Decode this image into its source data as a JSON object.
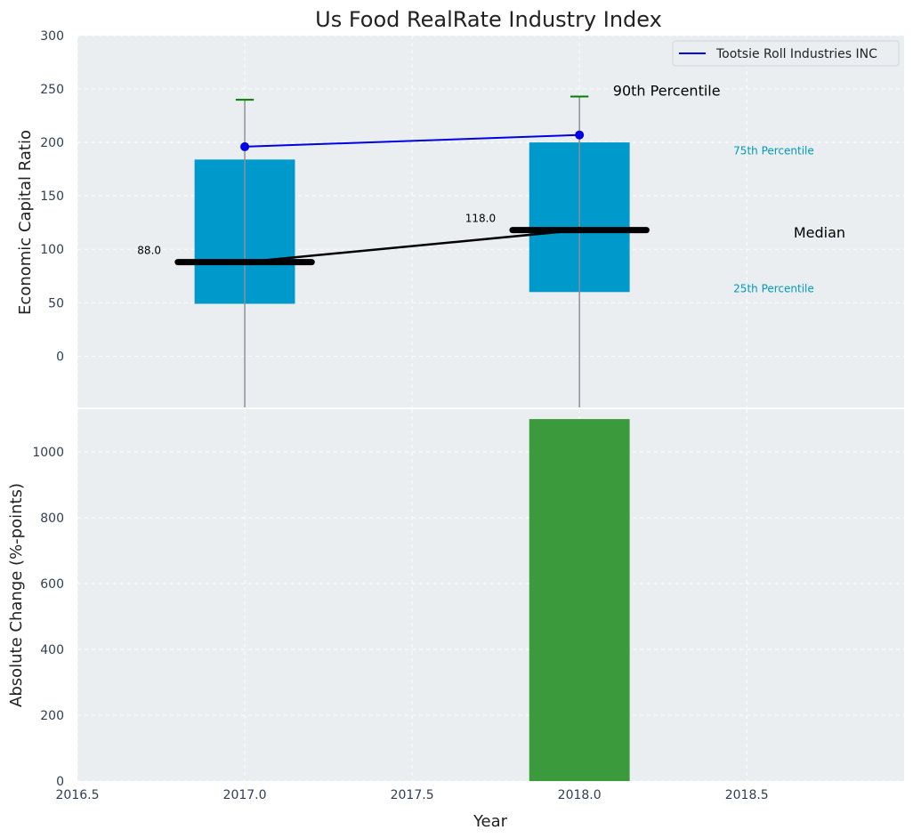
{
  "chart_data": {
    "title": "Us Food RealRate Industry Index",
    "xlabel": "Year",
    "xlim": [
      2016.5,
      2018.97
    ],
    "xticks": [
      "2016.5",
      "2017.0",
      "2017.5",
      "2018.0",
      "2018.5"
    ],
    "xtick_values": [
      2016.5,
      2017.0,
      2017.5,
      2018.0,
      2018.5
    ],
    "grid": true,
    "colors": {
      "background": "#eaeef0",
      "box": "#0099cc",
      "whisker": "#8a9299",
      "cap": "#008000",
      "company_line": "#0000e6",
      "median_line": "#000000",
      "change_bar": "#3b9a3b",
      "percentile_label": "#0099bb"
    },
    "top": {
      "type": "box",
      "ylabel": "Economic Capital Ratio",
      "ylim": [
        -48,
        300
      ],
      "yticks": [
        0,
        50,
        100,
        150,
        200,
        250,
        300
      ],
      "boxes": [
        {
          "x": 2017.0,
          "q1": 49,
          "q3": 184,
          "median": 88,
          "whisker_low": -48,
          "whisker_high": 240,
          "median_label": "88.0"
        },
        {
          "x": 2018.0,
          "q1": 60,
          "q3": 200,
          "median": 118,
          "whisker_low": -48,
          "whisker_high": 243,
          "median_label": "118.0"
        }
      ],
      "series": [
        {
          "name": "Tootsie Roll Industries INC",
          "x": [
            2017.0,
            2018.0
          ],
          "values": [
            196,
            207
          ]
        }
      ],
      "median_trend": {
        "x": [
          2017.0,
          2018.0
        ],
        "values": [
          88,
          118
        ]
      },
      "annotations": {
        "p90": {
          "text": "90th Percentile",
          "x": 2018.1,
          "y": 248
        },
        "p75": {
          "text": "75th Percentile",
          "x": 2018.46,
          "y": 192
        },
        "median": {
          "text": "Median",
          "x": 2018.64,
          "y": 115
        },
        "p25": {
          "text": "25th Percentile",
          "x": 2018.46,
          "y": 63
        }
      },
      "legend": {
        "placement": "top-right",
        "entries": [
          "Tootsie Roll Industries INC"
        ]
      }
    },
    "bottom": {
      "type": "bar",
      "ylabel": "Absolute Change (%-points)",
      "ylim": [
        0,
        1130
      ],
      "yticks": [
        0,
        200,
        400,
        600,
        800,
        1000
      ],
      "bars": [
        {
          "x": 2018.0,
          "value": 1100
        }
      ]
    }
  }
}
